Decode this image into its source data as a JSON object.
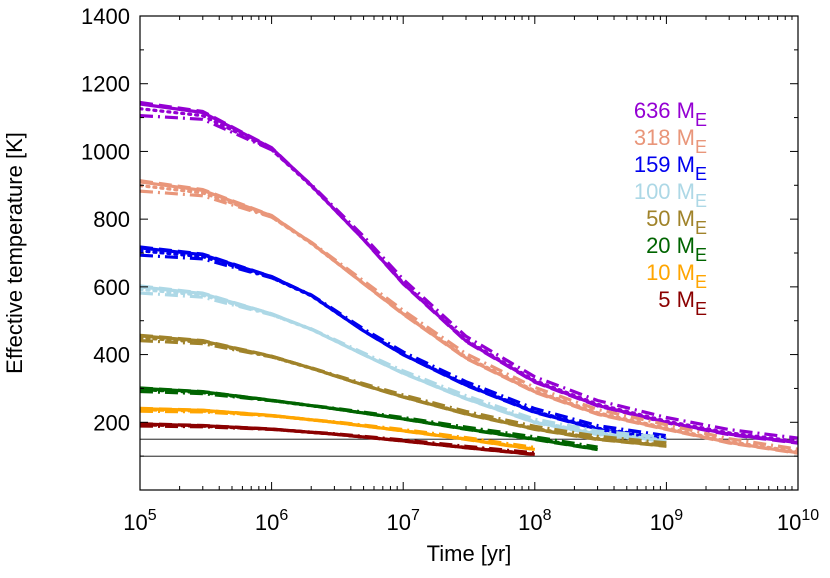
{
  "chart_data": {
    "type": "line",
    "title": "",
    "xlabel": "Time [yr]",
    "ylabel": "Effective temperature [K]",
    "xscale": "log",
    "xlim": [
      100000,
      10000000000
    ],
    "ylim": [
      0,
      1400
    ],
    "x_ticks": [
      {
        "value": 100000,
        "base": "10",
        "exp": "5"
      },
      {
        "value": 1000000,
        "base": "10",
        "exp": "6"
      },
      {
        "value": 10000000,
        "base": "10",
        "exp": "7"
      },
      {
        "value": 100000000,
        "base": "10",
        "exp": "8"
      },
      {
        "value": 1000000000,
        "base": "10",
        "exp": "9"
      },
      {
        "value": 10000000000,
        "base": "10",
        "exp": "10"
      }
    ],
    "y_ticks": [
      200,
      400,
      600,
      800,
      1000,
      1200,
      1400
    ],
    "reference_lines": [
      150,
      100
    ],
    "legend": {
      "placement": "top-right"
    },
    "line_styles": [
      "solid",
      "dotted",
      "dashed",
      "dash-dot"
    ],
    "series": [
      {
        "name": "636",
        "sub": "E",
        "color": "#9400D3",
        "points": [
          [
            100000,
            1140
          ],
          [
            300000,
            1115
          ],
          [
            1000000,
            1010
          ],
          [
            2000000,
            900
          ],
          [
            5000000,
            740
          ],
          [
            10000000,
            610
          ],
          [
            30000000,
            440
          ],
          [
            100000000,
            320
          ],
          [
            300000000,
            250
          ],
          [
            1000000000,
            200
          ],
          [
            3000000000,
            165
          ],
          [
            10000000000,
            140
          ]
        ]
      },
      {
        "name": "318",
        "sub": "E",
        "color": "#E9967A",
        "points": [
          [
            100000,
            910
          ],
          [
            300000,
            885
          ],
          [
            1000000,
            810
          ],
          [
            2000000,
            730
          ],
          [
            5000000,
            610
          ],
          [
            10000000,
            520
          ],
          [
            30000000,
            390
          ],
          [
            100000000,
            290
          ],
          [
            300000000,
            225
          ],
          [
            1000000000,
            180
          ],
          [
            3000000000,
            140
          ],
          [
            10000000000,
            110
          ]
        ]
      },
      {
        "name": "159",
        "sub": "E",
        "color": "#0000EE",
        "points": [
          [
            100000,
            715
          ],
          [
            300000,
            695
          ],
          [
            1000000,
            630
          ],
          [
            2000000,
            575
          ],
          [
            5000000,
            470
          ],
          [
            10000000,
            400
          ],
          [
            30000000,
            310
          ],
          [
            100000000,
            230
          ],
          [
            300000000,
            180
          ],
          [
            1000000000,
            150
          ]
        ]
      },
      {
        "name": "100",
        "sub": "E",
        "color": "#ADD8E6",
        "points": [
          [
            100000,
            600
          ],
          [
            300000,
            580
          ],
          [
            1000000,
            520
          ],
          [
            2000000,
            475
          ],
          [
            5000000,
            400
          ],
          [
            10000000,
            345
          ],
          [
            30000000,
            270
          ],
          [
            100000000,
            200
          ],
          [
            300000000,
            165
          ],
          [
            1000000000,
            145
          ]
        ]
      },
      {
        "name": "50",
        "sub": "E",
        "color": "#A0832A",
        "points": [
          [
            100000,
            455
          ],
          [
            300000,
            440
          ],
          [
            1000000,
            395
          ],
          [
            2000000,
            360
          ],
          [
            5000000,
            310
          ],
          [
            10000000,
            275
          ],
          [
            30000000,
            225
          ],
          [
            100000000,
            180
          ],
          [
            300000000,
            150
          ],
          [
            1000000000,
            130
          ]
        ]
      },
      {
        "name": "20",
        "sub": "E",
        "color": "#006400",
        "points": [
          [
            100000,
            300
          ],
          [
            300000,
            290
          ],
          [
            1000000,
            265
          ],
          [
            3000000,
            240
          ],
          [
            10000000,
            210
          ],
          [
            30000000,
            180
          ],
          [
            100000000,
            150
          ],
          [
            300000000,
            120
          ]
        ]
      },
      {
        "name": "10",
        "sub": "E",
        "color": "#FFA500",
        "points": [
          [
            100000,
            240
          ],
          [
            300000,
            235
          ],
          [
            1000000,
            220
          ],
          [
            3000000,
            200
          ],
          [
            10000000,
            175
          ],
          [
            30000000,
            150
          ],
          [
            100000000,
            120
          ]
        ]
      },
      {
        "name": "5",
        "sub": "E",
        "color": "#8B0000",
        "points": [
          [
            100000,
            195
          ],
          [
            300000,
            190
          ],
          [
            1000000,
            180
          ],
          [
            3000000,
            165
          ],
          [
            10000000,
            145
          ],
          [
            30000000,
            125
          ],
          [
            100000000,
            105
          ]
        ]
      }
    ]
  }
}
